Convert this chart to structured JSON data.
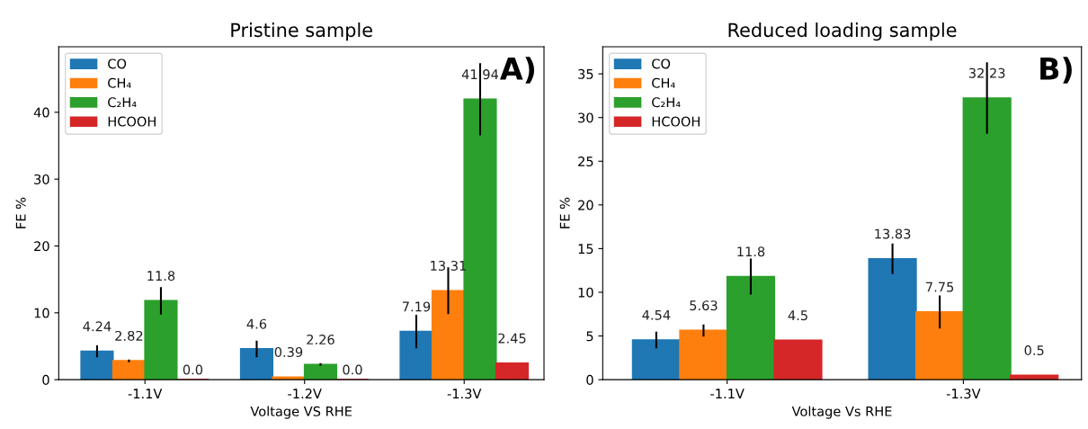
{
  "chart_data": [
    {
      "type": "bar",
      "title": "Pristine sample",
      "xlabel": "Voltage VS RHE",
      "ylabel": "FE %",
      "categories": [
        "-1.1V",
        "-1.2V",
        "-1.3V"
      ],
      "series": [
        {
          "name": "CO",
          "color": "#1f77b4",
          "values": [
            4.24,
            4.6,
            7.19
          ],
          "errors": [
            0.9,
            1.25,
            2.5
          ],
          "value_labels": [
            "4.24",
            "4.6",
            "7.19"
          ]
        },
        {
          "name": "CH₄",
          "color": "#ff7f0e",
          "values": [
            2.82,
            0.39,
            13.31
          ],
          "errors": [
            0.2,
            null,
            3.5
          ],
          "value_labels": [
            "2.82",
            "0.39",
            "13.31"
          ]
        },
        {
          "name": "C₂H₄",
          "color": "#2ca02c",
          "values": [
            11.8,
            2.26,
            41.94
          ],
          "errors": [
            2.05,
            0.2,
            5.4
          ],
          "value_labels": [
            "11.8",
            "2.26",
            "41.94"
          ]
        },
        {
          "name": "HCOOH",
          "color": "#d62728",
          "values": [
            0,
            0,
            2.45
          ],
          "errors": [
            null,
            null,
            null
          ],
          "value_labels": [
            "0.0",
            "0.0",
            "2.45"
          ]
        }
      ],
      "ylim": [
        0,
        49.8
      ],
      "yticks": [
        0,
        10,
        20,
        30,
        40
      ],
      "legend": "top left",
      "grid": false,
      "annotations": [
        "A)"
      ]
    },
    {
      "type": "bar",
      "title": "Reduced loading sample",
      "xlabel": "Voltage Vs RHE",
      "ylabel": "FE %",
      "categories": [
        "-1.1V",
        "-1.3V"
      ],
      "series": [
        {
          "name": "CO",
          "color": "#1f77b4",
          "values": [
            4.54,
            13.83
          ],
          "errors": [
            0.95,
            1.75
          ],
          "value_labels": [
            "4.54",
            "13.83"
          ]
        },
        {
          "name": "CH₄",
          "color": "#ff7f0e",
          "values": [
            5.63,
            7.75
          ],
          "errors": [
            0.7,
            1.9
          ],
          "value_labels": [
            "5.63",
            "7.75"
          ]
        },
        {
          "name": "C₂H₄",
          "color": "#2ca02c",
          "values": [
            11.8,
            32.23
          ],
          "errors": [
            2.05,
            4.1
          ],
          "value_labels": [
            "11.8",
            "32.23"
          ]
        },
        {
          "name": "HCOOH",
          "color": "#d62728",
          "values": [
            4.5,
            0.5
          ],
          "errors": [
            null,
            null
          ],
          "value_labels": [
            "4.5",
            "0.5"
          ]
        }
      ],
      "ylim": [
        0,
        38.1
      ],
      "yticks": [
        0,
        5,
        10,
        15,
        20,
        25,
        30,
        35
      ],
      "legend": "top left",
      "grid": false,
      "annotations": [
        "B)"
      ]
    }
  ]
}
